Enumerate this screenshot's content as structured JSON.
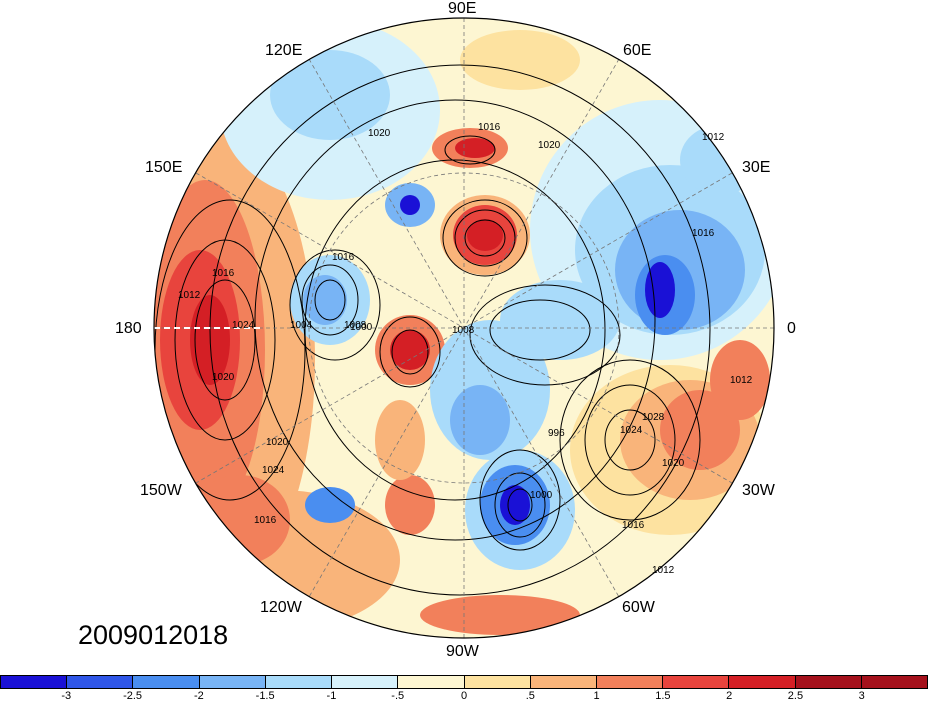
{
  "map": {
    "timestamp": "2009012018",
    "lon_labels": {
      "n90e": "90E",
      "n120e": "120E",
      "n60e": "60E",
      "n150e": "150E",
      "n30e": "30E",
      "n180": "180",
      "n0": "0",
      "n150w": "150W",
      "n30w": "30W",
      "n120w": "120W",
      "n60w": "60W",
      "n90w": "90W"
    },
    "contour_labels": [
      "1020",
      "1016",
      "1020",
      "1012",
      "1016",
      "1012",
      "1016",
      "1024",
      "1020",
      "1016",
      "1008",
      "1008",
      "1004",
      "1000",
      "996",
      "1000",
      "1024",
      "1028",
      "1020",
      "1016",
      "1012",
      "1012",
      "1020",
      "1024",
      "1016"
    ],
    "projection": "north polar stereographic"
  },
  "colorbar": {
    "ticks": [
      "-3",
      "-2.5",
      "-2",
      "-1.5",
      "-1",
      "-.5",
      "0",
      ".5",
      "1",
      "1.5",
      "2",
      "2.5",
      "3"
    ],
    "colors": [
      "#1a11d6",
      "#2f56e8",
      "#4a8ef0",
      "#78b4f5",
      "#a9dbfa",
      "#d6f1fb",
      "#fdf6d2",
      "#fde2a0",
      "#f9b47a",
      "#f2805b",
      "#e8443d",
      "#d41f25",
      "#a5111c"
    ]
  }
}
